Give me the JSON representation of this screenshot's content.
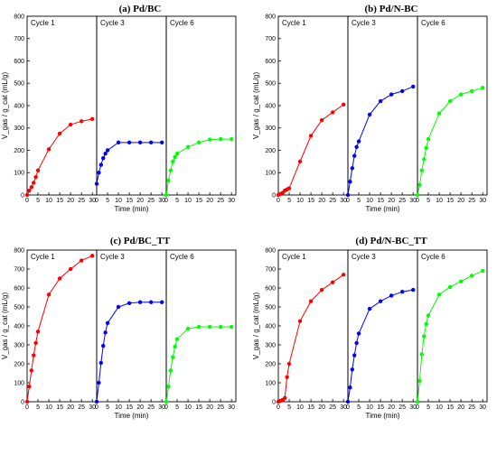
{
  "chart_data": [
    {
      "type": "line",
      "title": "(a) Pd/BC",
      "xlabel": "Time (min)",
      "ylabel": "V_gas / g_cat (mL/g)",
      "ylim": [
        0,
        800
      ],
      "xlim": [
        0,
        32
      ],
      "panels": [
        {
          "label": "Cycle 1",
          "color": "#ff0000",
          "x": [
            0,
            1,
            2,
            3,
            4,
            5,
            10,
            15,
            20,
            25,
            30
          ],
          "y": [
            0,
            20,
            35,
            55,
            80,
            110,
            205,
            275,
            315,
            330,
            340
          ]
        },
        {
          "label": "Cycle 3",
          "color": "#0000ff",
          "x": [
            0,
            1,
            2,
            3,
            4,
            5,
            10,
            15,
            20,
            25,
            30
          ],
          "y": [
            50,
            100,
            135,
            165,
            185,
            200,
            235,
            235,
            235,
            235,
            235
          ]
        },
        {
          "label": "Cycle 6",
          "color": "#00ff00",
          "x": [
            0,
            1,
            2,
            3,
            4,
            5,
            10,
            15,
            20,
            25,
            30
          ],
          "y": [
            0,
            65,
            110,
            150,
            170,
            185,
            215,
            235,
            248,
            250,
            250
          ]
        }
      ]
    },
    {
      "type": "line",
      "title": "(b) Pd/N-BC",
      "xlabel": "Time (min)",
      "ylabel": "V_gas / g_cat (mL/g)",
      "ylim": [
        0,
        800
      ],
      "xlim": [
        0,
        32
      ],
      "panels": [
        {
          "label": "Cycle 1",
          "color": "#ff0000",
          "x": [
            0,
            1,
            2,
            3,
            4,
            5,
            10,
            15,
            20,
            25,
            30
          ],
          "y": [
            0,
            5,
            10,
            20,
            25,
            30,
            150,
            265,
            335,
            370,
            405
          ]
        },
        {
          "label": "Cycle 3",
          "color": "#0000ff",
          "x": [
            0,
            1,
            2,
            3,
            4,
            5,
            10,
            15,
            20,
            25,
            30
          ],
          "y": [
            0,
            60,
            120,
            175,
            215,
            240,
            360,
            420,
            450,
            465,
            485
          ]
        },
        {
          "label": "Cycle 6",
          "color": "#00ff00",
          "x": [
            0,
            1,
            2,
            3,
            4,
            5,
            10,
            15,
            20,
            25,
            30
          ],
          "y": [
            0,
            45,
            110,
            160,
            210,
            250,
            365,
            420,
            450,
            465,
            480
          ]
        }
      ]
    },
    {
      "type": "line",
      "title": "(c) Pd/BC_TT",
      "xlabel": "Time (min)",
      "ylabel": "V_gas / g_cat (mL/g)",
      "ylim": [
        0,
        800
      ],
      "xlim": [
        0,
        32
      ],
      "panels": [
        {
          "label": "Cycle 1",
          "color": "#ff0000",
          "x": [
            0,
            1,
            2,
            3,
            4,
            5,
            10,
            15,
            20,
            25,
            30
          ],
          "y": [
            0,
            80,
            165,
            245,
            310,
            370,
            565,
            650,
            700,
            745,
            770
          ]
        },
        {
          "label": "Cycle 3",
          "color": "#0000ff",
          "x": [
            0,
            1,
            2,
            3,
            4,
            5,
            10,
            15,
            20,
            25,
            30
          ],
          "y": [
            0,
            100,
            205,
            295,
            365,
            415,
            500,
            520,
            525,
            525,
            525
          ]
        },
        {
          "label": "Cycle 6",
          "color": "#00ff00",
          "x": [
            0,
            1,
            2,
            3,
            4,
            5,
            10,
            15,
            20,
            25,
            30
          ],
          "y": [
            0,
            80,
            165,
            235,
            290,
            330,
            385,
            395,
            395,
            395,
            395
          ]
        }
      ]
    },
    {
      "type": "line",
      "title": "(d) Pd/N-BC_TT",
      "xlabel": "Time (min)",
      "ylabel": "V_gas / g_cat (mL/g)",
      "ylim": [
        0,
        800
      ],
      "xlim": [
        0,
        32
      ],
      "panels": [
        {
          "label": "Cycle 1",
          "color": "#ff0000",
          "x": [
            0,
            1,
            2,
            3,
            4,
            5,
            10,
            15,
            20,
            25,
            30
          ],
          "y": [
            0,
            5,
            10,
            20,
            130,
            200,
            425,
            530,
            590,
            630,
            670
          ]
        },
        {
          "label": "Cycle 3",
          "color": "#0000ff",
          "x": [
            0,
            1,
            2,
            3,
            4,
            5,
            10,
            15,
            20,
            25,
            30
          ],
          "y": [
            0,
            75,
            170,
            245,
            310,
            360,
            490,
            530,
            560,
            580,
            590
          ]
        },
        {
          "label": "Cycle 6",
          "color": "#00ff00",
          "x": [
            0,
            1,
            2,
            3,
            4,
            5,
            10,
            15,
            20,
            25,
            30
          ],
          "y": [
            0,
            110,
            250,
            345,
            410,
            455,
            565,
            605,
            635,
            665,
            690
          ]
        }
      ]
    }
  ]
}
